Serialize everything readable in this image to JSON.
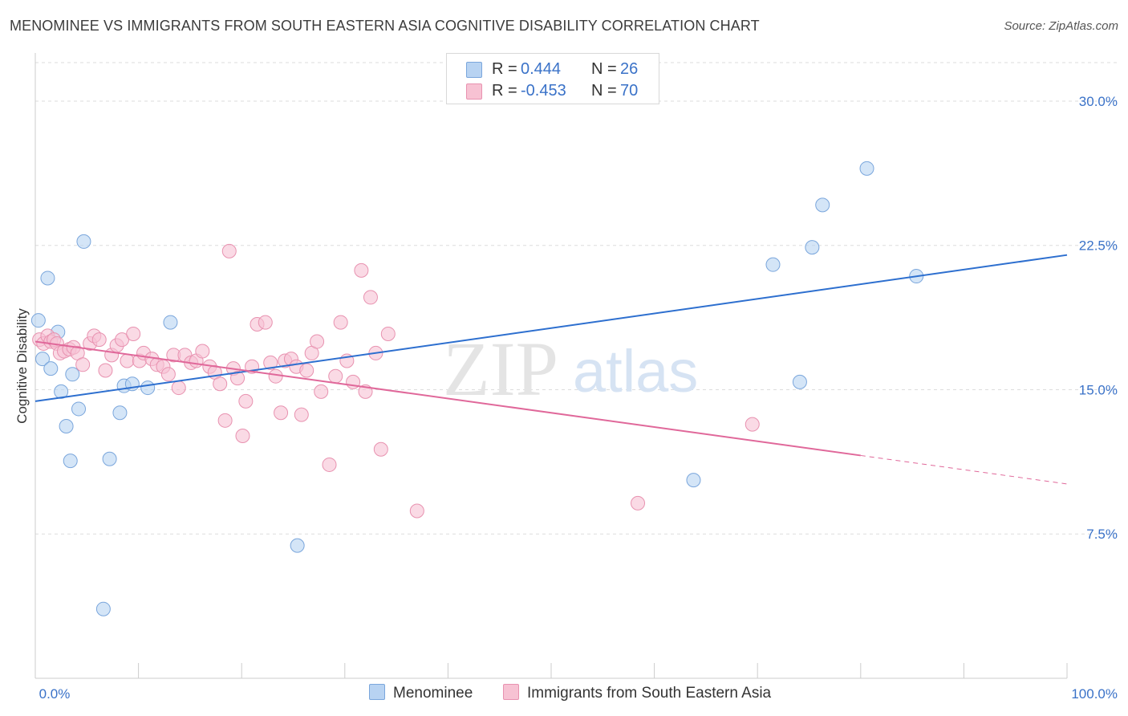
{
  "title": "MENOMINEE VS IMMIGRANTS FROM SOUTH EASTERN ASIA COGNITIVE DISABILITY CORRELATION CHART",
  "source": "Source: ZipAtlas.com",
  "watermark": {
    "zip": "ZIP",
    "atlas": "atlas"
  },
  "legend": {
    "rows": [
      {
        "r_label": "R =",
        "r_value": " 0.444",
        "n_label": "N =",
        "n_value": "26"
      },
      {
        "r_label": "R =",
        "r_value": "-0.453",
        "n_label": "N =",
        "n_value": "70"
      }
    ]
  },
  "bottom_legend": {
    "series1": "Menominee",
    "series2": "Immigrants from South Eastern Asia"
  },
  "colors": {
    "blue_fill": "#b8d3f2",
    "blue_stroke": "#7aa6dc",
    "blue_line": "#2d6fcf",
    "pink_fill": "#f7c2d3",
    "pink_stroke": "#e892b0",
    "pink_line": "#e0689a",
    "tick_label": "#3a72c8",
    "grid": "#dddddd"
  },
  "chart_data": {
    "type": "scatter",
    "title": "MENOMINEE VS IMMIGRANTS FROM SOUTH EASTERN ASIA COGNITIVE DISABILITY CORRELATION CHART",
    "xlabel": "",
    "ylabel": "Cognitive Disability",
    "xlim": [
      0,
      100
    ],
    "ylim": [
      0,
      32
    ],
    "x_tick_labels": [
      "0.0%",
      "100.0%"
    ],
    "y_ticks": [
      7.5,
      15.0,
      22.5,
      30.0
    ],
    "y_tick_labels": [
      "7.5%",
      "15.0%",
      "22.5%",
      "30.0%"
    ],
    "grid": true,
    "legend_position": "top-center",
    "series": [
      {
        "name": "Menominee",
        "color": "#b8d3f2",
        "r": "0.444",
        "n": "26",
        "trend": {
          "x": [
            0,
            100
          ],
          "y": [
            14.4,
            22.0
          ],
          "dashed_from": null
        },
        "points": [
          [
            0.3,
            18.6
          ],
          [
            0.7,
            16.6
          ],
          [
            1.2,
            20.8
          ],
          [
            1.5,
            16.1
          ],
          [
            2.2,
            18.0
          ],
          [
            2.5,
            14.9
          ],
          [
            3.0,
            13.1
          ],
          [
            3.4,
            11.3
          ],
          [
            3.6,
            15.8
          ],
          [
            4.2,
            14.0
          ],
          [
            4.7,
            22.7
          ],
          [
            6.6,
            3.6
          ],
          [
            7.2,
            11.4
          ],
          [
            8.2,
            13.8
          ],
          [
            8.6,
            15.2
          ],
          [
            9.4,
            15.3
          ],
          [
            10.9,
            15.1
          ],
          [
            13.1,
            18.5
          ],
          [
            25.4,
            6.9
          ],
          [
            63.8,
            10.3
          ],
          [
            71.5,
            21.5
          ],
          [
            74.1,
            15.4
          ],
          [
            75.3,
            22.4
          ],
          [
            76.3,
            24.6
          ],
          [
            80.6,
            26.5
          ],
          [
            85.4,
            20.9
          ]
        ]
      },
      {
        "name": "Immigrants from South Eastern Asia",
        "color": "#f7c2d3",
        "r": "-0.453",
        "n": "70",
        "trend": {
          "x": [
            0,
            100
          ],
          "y": [
            17.5,
            10.1
          ],
          "dashed_from": 80
        },
        "points": [
          [
            0.4,
            17.6
          ],
          [
            0.8,
            17.4
          ],
          [
            1.2,
            17.8
          ],
          [
            1.5,
            17.5
          ],
          [
            1.8,
            17.6
          ],
          [
            2.1,
            17.4
          ],
          [
            2.4,
            16.9
          ],
          [
            2.8,
            17.0
          ],
          [
            3.3,
            17.1
          ],
          [
            3.7,
            17.2
          ],
          [
            4.1,
            16.9
          ],
          [
            4.6,
            16.3
          ],
          [
            5.3,
            17.4
          ],
          [
            5.7,
            17.8
          ],
          [
            6.2,
            17.6
          ],
          [
            6.8,
            16.0
          ],
          [
            7.4,
            16.8
          ],
          [
            7.9,
            17.3
          ],
          [
            8.4,
            17.6
          ],
          [
            8.9,
            16.5
          ],
          [
            9.5,
            17.9
          ],
          [
            10.1,
            16.5
          ],
          [
            10.5,
            16.9
          ],
          [
            11.3,
            16.6
          ],
          [
            11.8,
            16.3
          ],
          [
            12.4,
            16.2
          ],
          [
            12.9,
            15.8
          ],
          [
            13.4,
            16.8
          ],
          [
            13.9,
            15.1
          ],
          [
            14.5,
            16.8
          ],
          [
            15.1,
            16.4
          ],
          [
            15.6,
            16.5
          ],
          [
            16.2,
            17.0
          ],
          [
            16.9,
            16.2
          ],
          [
            17.4,
            15.9
          ],
          [
            17.9,
            15.3
          ],
          [
            18.4,
            13.4
          ],
          [
            18.8,
            22.2
          ],
          [
            19.2,
            16.1
          ],
          [
            19.6,
            15.6
          ],
          [
            20.1,
            12.6
          ],
          [
            20.4,
            14.4
          ],
          [
            21.0,
            16.2
          ],
          [
            21.5,
            18.4
          ],
          [
            22.3,
            18.5
          ],
          [
            22.8,
            16.4
          ],
          [
            23.3,
            15.7
          ],
          [
            23.8,
            13.8
          ],
          [
            24.2,
            16.5
          ],
          [
            24.8,
            16.6
          ],
          [
            25.3,
            16.2
          ],
          [
            25.8,
            13.7
          ],
          [
            26.3,
            16.0
          ],
          [
            26.8,
            16.9
          ],
          [
            27.3,
            17.5
          ],
          [
            27.7,
            14.9
          ],
          [
            28.5,
            11.1
          ],
          [
            29.1,
            15.7
          ],
          [
            29.6,
            18.5
          ],
          [
            30.2,
            16.5
          ],
          [
            30.8,
            15.4
          ],
          [
            31.6,
            21.2
          ],
          [
            32.0,
            14.9
          ],
          [
            32.5,
            19.8
          ],
          [
            33.0,
            16.9
          ],
          [
            33.5,
            11.9
          ],
          [
            34.2,
            17.9
          ],
          [
            37.0,
            8.7
          ],
          [
            58.4,
            9.1
          ],
          [
            69.5,
            13.2
          ]
        ]
      }
    ]
  }
}
